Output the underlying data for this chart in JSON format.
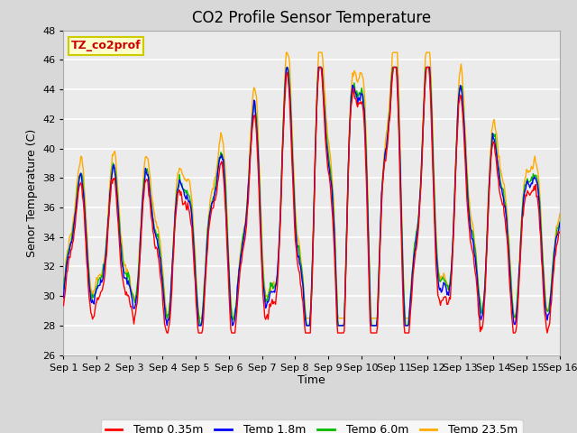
{
  "title": "CO2 Profile Sensor Temperature",
  "xlabel": "Time",
  "ylabel": "Senor Temperature (C)",
  "ylim": [
    26,
    48
  ],
  "xlim": [
    0,
    15
  ],
  "xtick_labels": [
    "Sep 1",
    "Sep 2",
    "Sep 3",
    "Sep 4",
    "Sep 5",
    "Sep 6",
    "Sep 7",
    "Sep 8",
    "Sep 9",
    "Sep 10",
    "Sep 11",
    "Sep 12",
    "Sep 13",
    "Sep 14",
    "Sep 15",
    "Sep 16"
  ],
  "xtick_positions": [
    0,
    1,
    2,
    3,
    4,
    5,
    6,
    7,
    8,
    9,
    10,
    11,
    12,
    13,
    14,
    15
  ],
  "ytick_positions": [
    26,
    28,
    30,
    32,
    34,
    36,
    38,
    40,
    42,
    44,
    46,
    48
  ],
  "colors": {
    "Temp 0.35m": "#ff0000",
    "Temp 1.8m": "#0000ff",
    "Temp 6.0m": "#00bb00",
    "Temp 23.5m": "#ffaa00"
  },
  "legend_label": "TZ_co2prof",
  "legend_label_color": "#cc0000",
  "legend_box_facecolor": "#ffffcc",
  "legend_box_edgecolor": "#cccc00",
  "fig_facecolor": "#d8d8d8",
  "ax_facecolor": "#ebebeb",
  "grid_color": "#ffffff",
  "title_fontsize": 12,
  "axis_fontsize": 9,
  "tick_fontsize": 8,
  "legend_fontsize": 9
}
